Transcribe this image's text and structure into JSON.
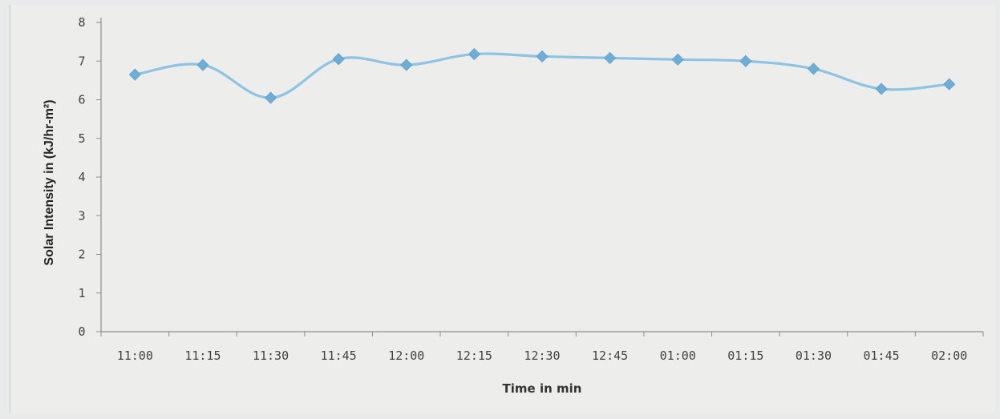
{
  "chart_data": {
    "type": "line",
    "xlabel": "Time in min",
    "ylabel": "Solar Intensity in (kJ/hr-m²)",
    "categories": [
      "11:00",
      "11:15",
      "11:30",
      "11:45",
      "12:00",
      "12:15",
      "12:30",
      "12:45",
      "01:00",
      "01:15",
      "01:30",
      "01:45",
      "02:00"
    ],
    "series": [
      {
        "values": [
          6.65,
          6.9,
          6.05,
          7.05,
          6.9,
          7.18,
          7.12,
          7.08,
          7.04,
          7.0,
          6.8,
          6.28,
          6.4
        ]
      }
    ],
    "ylim": [
      0,
      8
    ],
    "yticks": [
      "0",
      "1",
      "2",
      "3",
      "4",
      "5",
      "6",
      "7",
      "8"
    ],
    "grid": false,
    "colors": {
      "line": "#8ec3e3",
      "marker": "#6eaed6"
    }
  }
}
